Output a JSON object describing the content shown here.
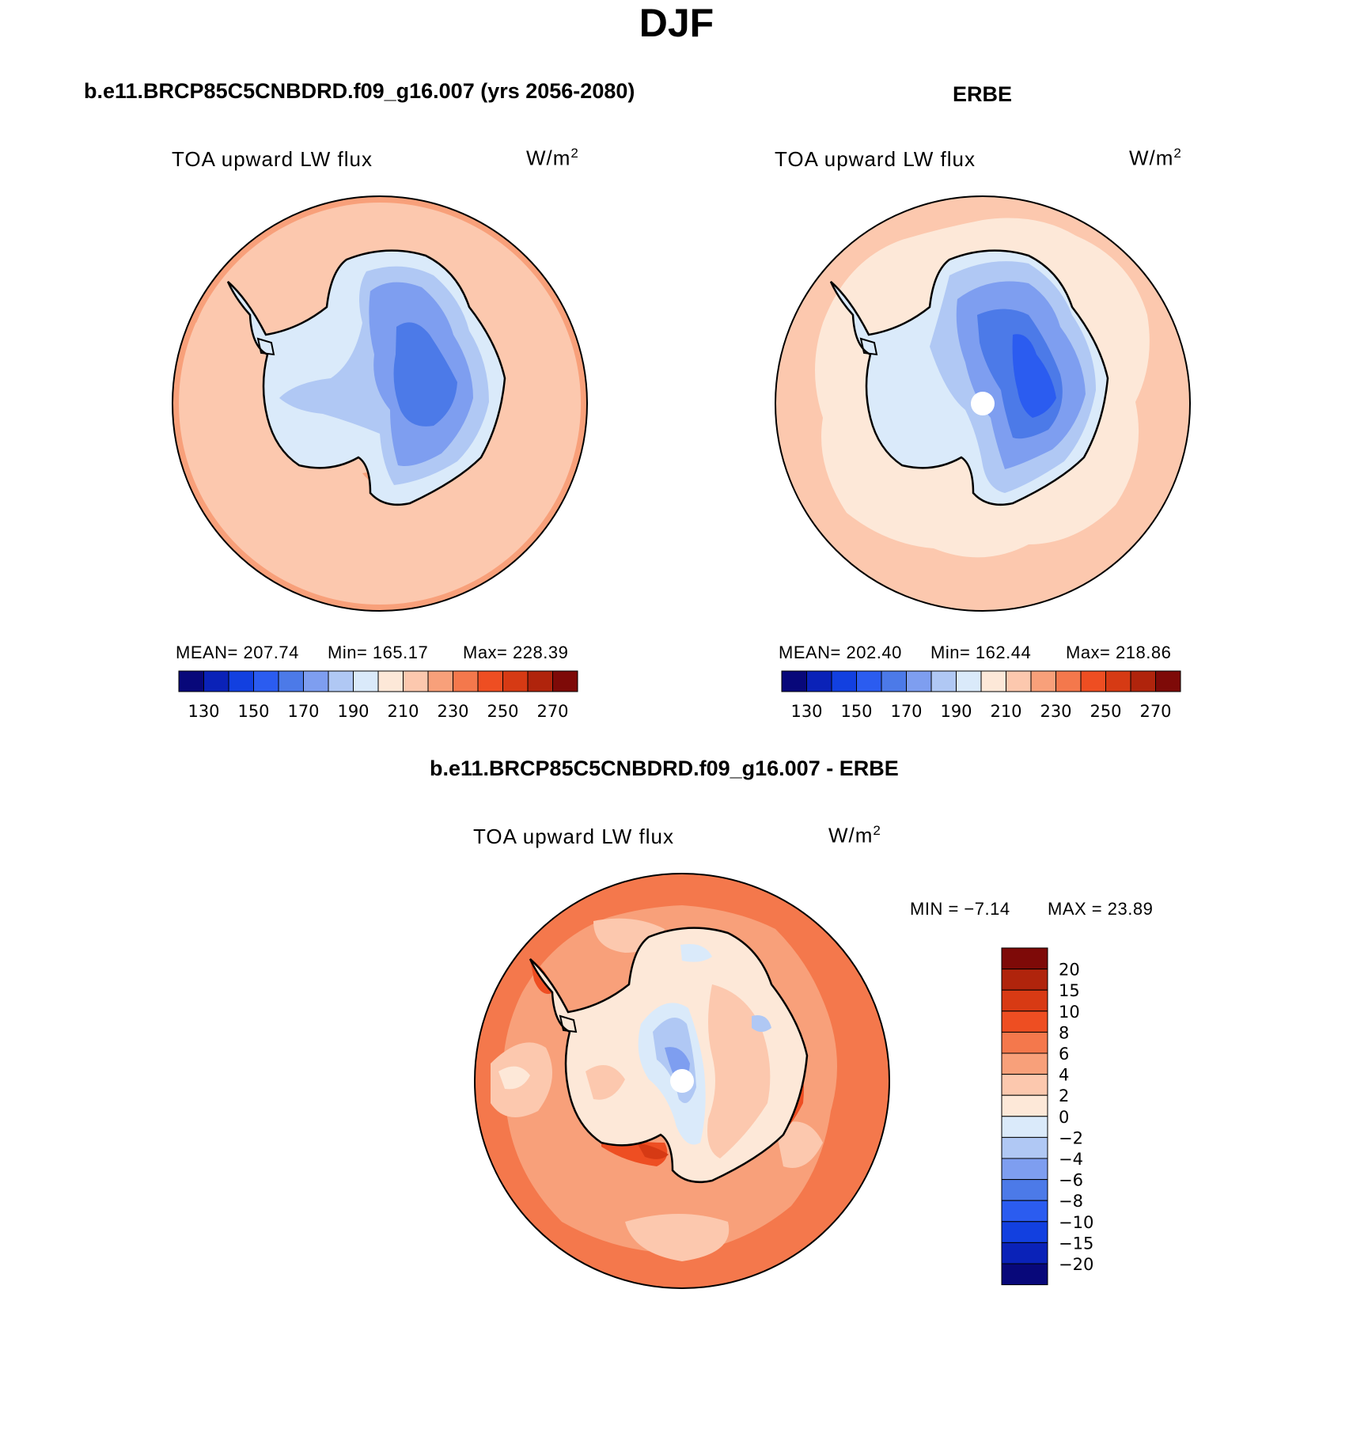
{
  "figure": {
    "title": "DJF"
  },
  "panels": [
    {
      "title": "b.e11.BRCP85C5CNBDRD.f09_g16.007 (yrs 2056-2080)",
      "variable": "TOA upward LW flux",
      "units_base": "W/m",
      "units_exp": "2",
      "stats": {
        "mean_label": "MEAN=",
        "mean": "207.74",
        "min_label": "Min=",
        "min": "165.17",
        "max_label": "Max=",
        "max": "228.39"
      }
    },
    {
      "title": "ERBE",
      "variable": "TOA upward LW flux",
      "units_base": "W/m",
      "units_exp": "2",
      "stats": {
        "mean_label": "MEAN=",
        "mean": "202.40",
        "min_label": "Min=",
        "min": "162.44",
        "max_label": "Max=",
        "max": "218.86"
      }
    },
    {
      "title": "b.e11.BRCP85C5CNBDRD.f09_g16.007 - ERBE",
      "variable": "TOA upward LW flux",
      "units_base": "W/m",
      "units_exp": "2",
      "stats": {
        "min_label": "MIN =",
        "min": "−7.14",
        "max_label": "MAX =",
        "max": "23.89"
      }
    }
  ],
  "colorbars": {
    "field": {
      "orientation": "horizontal",
      "colors": [
        "#08087a",
        "#0a22b8",
        "#1240e0",
        "#2b5cf0",
        "#4c7ae8",
        "#7e9ef0",
        "#b0c8f4",
        "#daeafa",
        "#fde8d8",
        "#fcc8ae",
        "#f8a07a",
        "#f4784c",
        "#ee4e22",
        "#d63a14",
        "#b0240c",
        "#7e0a08"
      ],
      "labels": [
        "130",
        "150",
        "170",
        "190",
        "210",
        "230",
        "250",
        "270"
      ]
    },
    "diff": {
      "orientation": "vertical",
      "colors": [
        "#7e0a08",
        "#b0240c",
        "#d83a14",
        "#ee4e22",
        "#f4784c",
        "#f8a07a",
        "#fcc8ae",
        "#fde8d8",
        "#daeafa",
        "#b0c8f4",
        "#7e9ef0",
        "#4c7ae8",
        "#2b5cf0",
        "#1240e0",
        "#0a22b8",
        "#08087a"
      ],
      "labels": [
        "20",
        "15",
        "10",
        "8",
        "6",
        "4",
        "2",
        "0",
        "−2",
        "−4",
        "−6",
        "−8",
        "−10",
        "−15",
        "−20"
      ]
    }
  },
  "map_colors": {
    "ocean_model": "#fcc8ae",
    "ocean_model_warm": "#f8a07a",
    "ocean_obs": "#fde8d8",
    "ocean_obs_warm": "#fcc8ae",
    "land_l1": "#daeafa",
    "land_l2": "#b0c8f4",
    "land_l3": "#7e9ef0",
    "land_l4": "#4c7ae8",
    "land_l5": "#2b5cf0",
    "diff_ocean": "#f8a07a",
    "diff_ring": "#f4784c",
    "diff_light": "#fcc8ae",
    "diff_pale": "#fde8d8",
    "diff_neg1": "#daeafa",
    "diff_neg2": "#b0c8f4",
    "diff_neg3": "#7e9ef0",
    "diff_hot": "#ee4e22",
    "diff_hotter": "#d63a14",
    "coast": "#000000",
    "pole_hole": "#ffffff"
  }
}
